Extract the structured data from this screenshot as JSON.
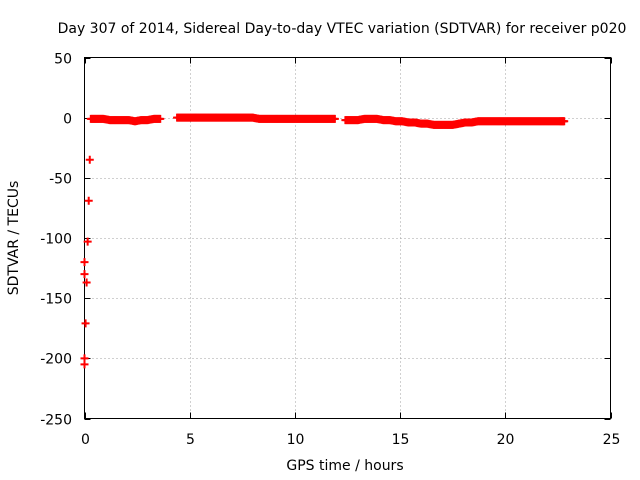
{
  "chart_data": {
    "type": "scatter",
    "title": "Day 307 of 2014, Sidereal Day-to-day VTEC variation (SDTVAR) for receiver p020",
    "xlabel": "GPS time / hours",
    "ylabel": "SDTVAR / TECUs",
    "xlim": [
      0,
      25
    ],
    "ylim": [
      -250,
      50
    ],
    "xticks": [
      0,
      5,
      10,
      15,
      20,
      25
    ],
    "yticks": [
      50,
      0,
      -50,
      -100,
      -150,
      -200,
      -250
    ],
    "grid": true,
    "legend": "none",
    "point_color": "#ff0000",
    "series": [
      {
        "name": "SDTVAR",
        "x": [
          0.0,
          0.0,
          0.0,
          0.0,
          0.3,
          0.6,
          0.9,
          1.2,
          1.5,
          1.8,
          2.1,
          2.4,
          2.7,
          3.0,
          3.3,
          3.6,
          4.4,
          4.7,
          5.0,
          5.3,
          5.6,
          5.9,
          6.2,
          6.5,
          6.8,
          7.1,
          7.4,
          7.7,
          8.0,
          8.3,
          8.6,
          8.9,
          9.2,
          9.5,
          9.8,
          10.1,
          10.4,
          10.7,
          11.0,
          11.3,
          11.6,
          11.9,
          12.4,
          12.7,
          13.0,
          13.3,
          13.6,
          13.9,
          14.2,
          14.5,
          14.8,
          15.1,
          15.4,
          15.7,
          16.0,
          16.3,
          16.6,
          16.9,
          17.2,
          17.5,
          17.8,
          18.1,
          18.4,
          18.7,
          19.0,
          19.3,
          19.6,
          19.9,
          20.2,
          20.5,
          20.8,
          21.1,
          21.4,
          21.7,
          22.0,
          22.3,
          22.6,
          22.8
        ],
        "y": [
          -120,
          -130,
          -200,
          -205,
          -1,
          -1,
          -1,
          -2,
          -2,
          -2,
          -2,
          -3,
          -2,
          -2,
          -1,
          -1,
          0,
          0,
          0,
          0,
          0,
          0,
          0,
          0,
          0,
          0,
          0,
          0,
          0,
          -1,
          -1,
          -1,
          -1,
          -1,
          -1,
          -1,
          -1,
          -1,
          -1,
          -1,
          -1,
          -1,
          -2,
          -2,
          -2,
          -1,
          -1,
          -1,
          -2,
          -2,
          -3,
          -3,
          -4,
          -4,
          -5,
          -5,
          -6,
          -6,
          -6,
          -6,
          -5,
          -4,
          -4,
          -3,
          -3,
          -3,
          -3,
          -3,
          -3,
          -3,
          -3,
          -3,
          -3,
          -3,
          -3,
          -3,
          -3,
          -3
        ]
      }
    ]
  }
}
